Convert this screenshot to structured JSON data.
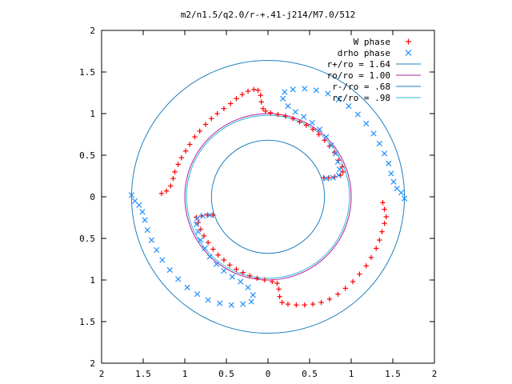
{
  "chart_data": {
    "type": "scatter",
    "title": "m2/n1.5/q2.0/r-+.41-j214/M7.0/512",
    "xlim": [
      -2,
      2
    ],
    "ylim": [
      -2,
      2
    ],
    "x_ticks": [
      -2,
      -1.5,
      -1,
      -0.5,
      0,
      0.5,
      1,
      1.5,
      2
    ],
    "y_ticks": [
      -2,
      -1.5,
      -1,
      -0.5,
      0,
      0.5,
      1,
      1.5,
      2
    ],
    "x_tick_labels": [
      "2",
      "1.5",
      "1",
      "0.5",
      "0",
      "0.5",
      "1",
      "1.5",
      "2"
    ],
    "y_tick_labels": [
      "2",
      "1.5",
      "1",
      "0.5",
      "0",
      "0.5",
      "1",
      "1.5",
      "2"
    ],
    "grid": false,
    "legend_position": "top-right",
    "series": [
      {
        "name": "W phase",
        "kind": "points",
        "marker": "plus",
        "color": "#ff0000",
        "points": [
          [
            -1.28,
            0.04
          ],
          [
            -1.22,
            0.07
          ],
          [
            -1.17,
            0.13
          ],
          [
            -1.14,
            0.22
          ],
          [
            -1.12,
            0.3
          ],
          [
            -1.08,
            0.39
          ],
          [
            -1.04,
            0.47
          ],
          [
            -0.99,
            0.55
          ],
          [
            -0.94,
            0.63
          ],
          [
            -0.88,
            0.72
          ],
          [
            -0.82,
            0.79
          ],
          [
            -0.75,
            0.87
          ],
          [
            -0.68,
            0.94
          ],
          [
            -0.61,
            1.0
          ],
          [
            -0.53,
            1.06
          ],
          [
            -0.45,
            1.12
          ],
          [
            -0.38,
            1.18
          ],
          [
            -0.31,
            1.23
          ],
          [
            -0.24,
            1.27
          ],
          [
            -0.17,
            1.29
          ],
          [
            -0.12,
            1.28
          ],
          [
            -0.09,
            1.22
          ],
          [
            -0.08,
            1.14
          ],
          [
            -0.06,
            1.06
          ],
          [
            -0.03,
            1.03
          ],
          [
            0.03,
            1.01
          ],
          [
            0.12,
            0.99
          ],
          [
            0.21,
            0.97
          ],
          [
            0.3,
            0.94
          ],
          [
            0.38,
            0.9
          ],
          [
            0.46,
            0.86
          ],
          [
            0.54,
            0.81
          ],
          [
            0.61,
            0.75
          ],
          [
            0.68,
            0.68
          ],
          [
            0.74,
            0.61
          ],
          [
            0.8,
            0.53
          ],
          [
            0.85,
            0.44
          ],
          [
            0.89,
            0.36
          ],
          [
            0.9,
            0.3
          ],
          [
            0.87,
            0.26
          ],
          [
            0.8,
            0.24
          ],
          [
            0.73,
            0.23
          ],
          [
            0.67,
            0.23
          ],
          [
            1.38,
            -0.07
          ],
          [
            1.4,
            -0.15
          ],
          [
            1.42,
            -0.24
          ],
          [
            1.4,
            -0.32
          ],
          [
            1.37,
            -0.42
          ],
          [
            1.34,
            -0.52
          ],
          [
            1.3,
            -0.62
          ],
          [
            1.24,
            -0.73
          ],
          [
            1.18,
            -0.83
          ],
          [
            1.1,
            -0.93
          ],
          [
            1.02,
            -1.02
          ],
          [
            0.93,
            -1.1
          ],
          [
            0.84,
            -1.17
          ],
          [
            0.74,
            -1.23
          ],
          [
            0.64,
            -1.27
          ],
          [
            0.54,
            -1.29
          ],
          [
            0.44,
            -1.3
          ],
          [
            0.34,
            -1.3
          ],
          [
            0.24,
            -1.29
          ],
          [
            0.17,
            -1.27
          ],
          [
            0.14,
            -1.2
          ],
          [
            0.13,
            -1.11
          ],
          [
            0.11,
            -1.04
          ],
          [
            0.05,
            -1.02
          ],
          [
            -0.04,
            -1.0
          ],
          [
            -0.13,
            -0.98
          ],
          [
            -0.22,
            -0.95
          ],
          [
            -0.3,
            -0.91
          ],
          [
            -0.38,
            -0.87
          ],
          [
            -0.46,
            -0.82
          ],
          [
            -0.53,
            -0.76
          ],
          [
            -0.6,
            -0.7
          ],
          [
            -0.66,
            -0.63
          ],
          [
            -0.72,
            -0.55
          ],
          [
            -0.77,
            -0.47
          ],
          [
            -0.81,
            -0.39
          ],
          [
            -0.84,
            -0.31
          ],
          [
            -0.86,
            -0.25
          ],
          [
            -0.8,
            -0.23
          ],
          [
            -0.73,
            -0.22
          ],
          [
            -0.66,
            -0.22
          ]
        ]
      },
      {
        "name": "drho phase",
        "kind": "points",
        "marker": "cross",
        "color": "#1e90ff",
        "points": [
          [
            -1.64,
            0.02
          ],
          [
            -1.6,
            -0.05
          ],
          [
            -1.55,
            -0.1
          ],
          [
            -1.51,
            -0.18
          ],
          [
            -1.48,
            -0.28
          ],
          [
            -1.45,
            -0.4
          ],
          [
            -1.4,
            -0.52
          ],
          [
            -1.34,
            -0.64
          ],
          [
            -1.27,
            -0.76
          ],
          [
            -1.18,
            -0.88
          ],
          [
            -1.08,
            -0.99
          ],
          [
            -0.97,
            -1.09
          ],
          [
            -0.85,
            -1.17
          ],
          [
            -0.72,
            -1.24
          ],
          [
            -0.58,
            -1.28
          ],
          [
            -0.44,
            -1.3
          ],
          [
            -0.3,
            -1.29
          ],
          [
            -0.2,
            -1.26
          ],
          [
            -0.18,
            -1.18
          ],
          [
            -0.24,
            -1.09
          ],
          [
            -0.33,
            -1.02
          ],
          [
            -0.43,
            -0.96
          ],
          [
            -0.53,
            -0.89
          ],
          [
            -0.62,
            -0.81
          ],
          [
            -0.7,
            -0.72
          ],
          [
            -0.76,
            -0.62
          ],
          [
            -0.81,
            -0.52
          ],
          [
            -0.84,
            -0.42
          ],
          [
            -0.86,
            -0.33
          ],
          [
            -0.85,
            -0.26
          ],
          [
            -0.78,
            -0.23
          ],
          [
            -0.7,
            -0.22
          ],
          [
            1.64,
            -0.02
          ],
          [
            1.6,
            0.05
          ],
          [
            1.55,
            0.1
          ],
          [
            1.51,
            0.18
          ],
          [
            1.48,
            0.28
          ],
          [
            1.45,
            0.4
          ],
          [
            1.4,
            0.52
          ],
          [
            1.34,
            0.64
          ],
          [
            1.27,
            0.76
          ],
          [
            1.18,
            0.88
          ],
          [
            1.08,
            0.99
          ],
          [
            0.97,
            1.09
          ],
          [
            0.85,
            1.17
          ],
          [
            0.72,
            1.24
          ],
          [
            0.58,
            1.28
          ],
          [
            0.44,
            1.3
          ],
          [
            0.3,
            1.29
          ],
          [
            0.2,
            1.26
          ],
          [
            0.18,
            1.18
          ],
          [
            0.24,
            1.09
          ],
          [
            0.33,
            1.02
          ],
          [
            0.43,
            0.96
          ],
          [
            0.53,
            0.89
          ],
          [
            0.62,
            0.81
          ],
          [
            0.7,
            0.72
          ],
          [
            0.76,
            0.62
          ],
          [
            0.81,
            0.52
          ],
          [
            0.84,
            0.42
          ],
          [
            0.86,
            0.33
          ],
          [
            0.85,
            0.26
          ],
          [
            0.78,
            0.23
          ],
          [
            0.7,
            0.22
          ]
        ]
      },
      {
        "name": "r+/ro = 1.64",
        "kind": "circle",
        "radius": 1.64,
        "color": "#1f7fbf"
      },
      {
        "name": "ro/ro = 1.00",
        "kind": "circle",
        "radius": 1.0,
        "color": "#b0209a"
      },
      {
        "name": "r-/ro = .68",
        "kind": "circle",
        "radius": 0.68,
        "color": "#1f7fbf"
      },
      {
        "name": "rc/ro = .98",
        "kind": "circle",
        "radius": 0.98,
        "color": "#30b8d8"
      }
    ]
  }
}
